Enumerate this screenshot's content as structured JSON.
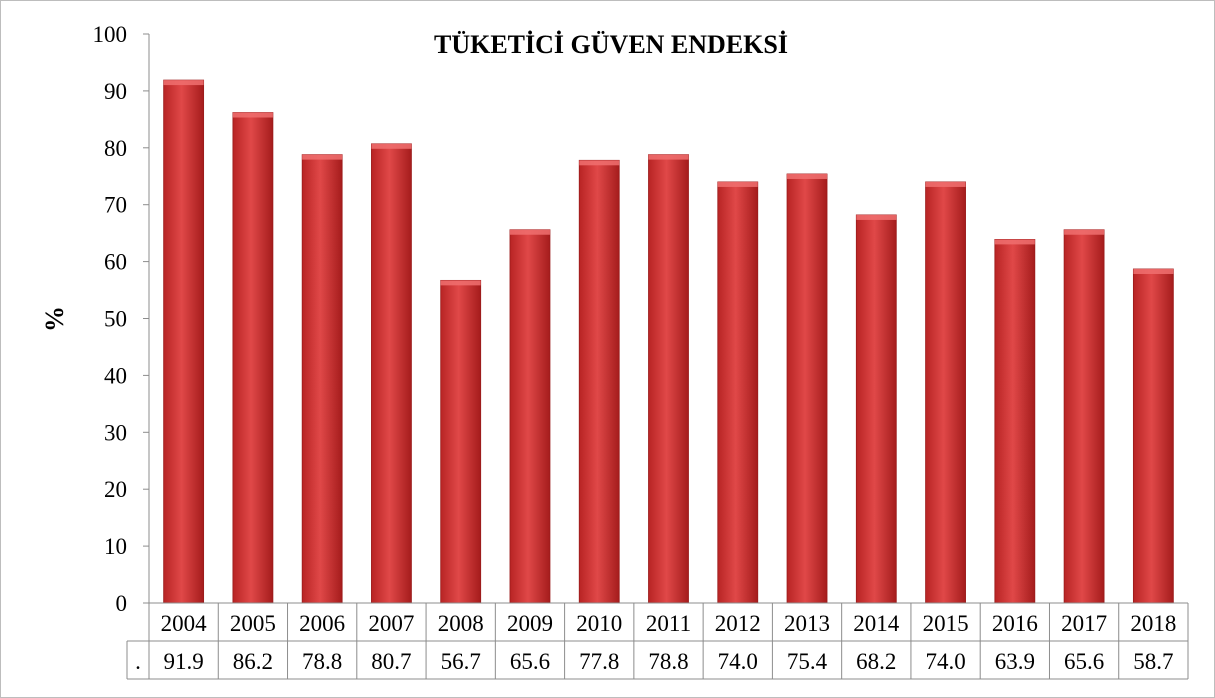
{
  "chart_data": {
    "type": "bar",
    "title": "TÜKETİCİ GÜVEN ENDEKSİ",
    "xlabel": "",
    "ylabel": "%",
    "ylim": [
      0,
      100
    ],
    "yticks": [
      0,
      10,
      20,
      30,
      40,
      50,
      60,
      70,
      80,
      90,
      100
    ],
    "grid": false,
    "legend": "none",
    "categories": [
      "2004",
      "2005",
      "2006",
      "2007",
      "2008",
      "2009",
      "2010",
      "2011",
      "2012",
      "2013",
      "2014",
      "2015",
      "2016",
      "2017",
      "2018"
    ],
    "values": [
      91.9,
      86.2,
      78.8,
      80.7,
      56.7,
      65.6,
      77.8,
      78.8,
      74.0,
      75.4,
      68.2,
      74.0,
      63.9,
      65.6,
      58.7
    ],
    "value_labels": [
      "91.9",
      "86.2",
      "78.8",
      "80.7",
      "56.7",
      "65.6",
      "77.8",
      "78.8",
      "74.0",
      "75.4",
      "68.2",
      "74.0",
      "63.9",
      "65.6",
      "58.7"
    ],
    "table_row_key": ".",
    "bar_color": "#d93a3a"
  }
}
